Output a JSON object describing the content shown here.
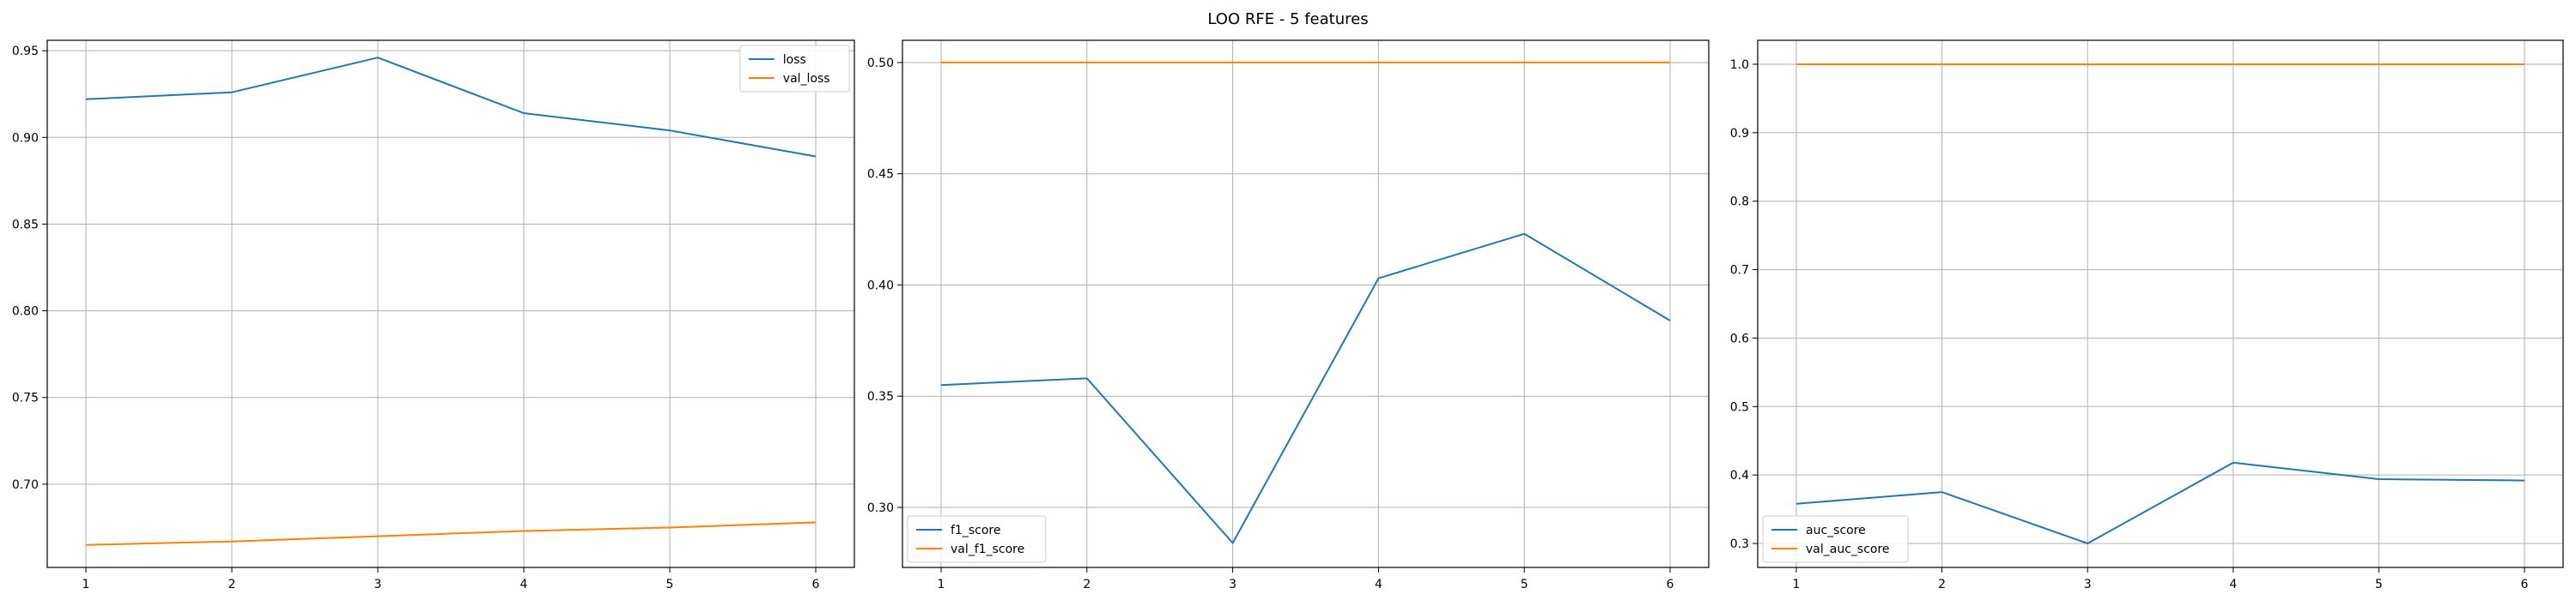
{
  "figure": {
    "suptitle": "LOO RFE - 5 features"
  },
  "chart_data": [
    {
      "type": "line",
      "x": [
        1,
        2,
        3,
        4,
        5,
        6
      ],
      "xticks": [
        "1",
        "2",
        "3",
        "4",
        "5",
        "6"
      ],
      "ylim": [
        0.652,
        0.956
      ],
      "yticks": [
        0.7,
        0.75,
        0.8,
        0.85,
        0.9,
        0.95
      ],
      "ytick_labels": [
        "0.70",
        "0.75",
        "0.80",
        "0.85",
        "0.90",
        "0.95"
      ],
      "grid": true,
      "legend": "upper right",
      "series": [
        {
          "name": "loss",
          "color": "#1f77b4",
          "values": [
            0.922,
            0.926,
            0.946,
            0.914,
            0.904,
            0.889
          ]
        },
        {
          "name": "val_loss",
          "color": "#ff7f0e",
          "values": [
            0.665,
            0.667,
            0.67,
            0.673,
            0.675,
            0.678
          ]
        }
      ]
    },
    {
      "type": "line",
      "x": [
        1,
        2,
        3,
        4,
        5,
        6
      ],
      "xticks": [
        "1",
        "2",
        "3",
        "4",
        "5",
        "6"
      ],
      "ylim": [
        0.273,
        0.51
      ],
      "yticks": [
        0.3,
        0.35,
        0.4,
        0.45,
        0.5
      ],
      "ytick_labels": [
        "0.30",
        "0.35",
        "0.40",
        "0.45",
        "0.50"
      ],
      "grid": true,
      "legend": "lower left",
      "series": [
        {
          "name": "f1_score",
          "color": "#1f77b4",
          "values": [
            0.355,
            0.358,
            0.284,
            0.403,
            0.423,
            0.384
          ]
        },
        {
          "name": "val_f1_score",
          "color": "#ff7f0e",
          "values": [
            0.5,
            0.5,
            0.5,
            0.5,
            0.5,
            0.5
          ]
        }
      ]
    },
    {
      "type": "line",
      "x": [
        1,
        2,
        3,
        4,
        5,
        6
      ],
      "xticks": [
        "1",
        "2",
        "3",
        "4",
        "5",
        "6"
      ],
      "ylim": [
        0.265,
        1.035
      ],
      "yticks": [
        0.3,
        0.4,
        0.5,
        0.6,
        0.7,
        0.8,
        0.9,
        1.0
      ],
      "ytick_labels": [
        "0.3",
        "0.4",
        "0.5",
        "0.6",
        "0.7",
        "0.8",
        "0.9",
        "1.0"
      ],
      "grid": true,
      "legend": "lower left",
      "series": [
        {
          "name": "auc_score",
          "color": "#1f77b4",
          "values": [
            0.358,
            0.375,
            0.3,
            0.418,
            0.394,
            0.392
          ]
        },
        {
          "name": "val_auc_score",
          "color": "#ff7f0e",
          "values": [
            1.0,
            1.0,
            1.0,
            1.0,
            1.0,
            1.0
          ]
        }
      ]
    }
  ]
}
